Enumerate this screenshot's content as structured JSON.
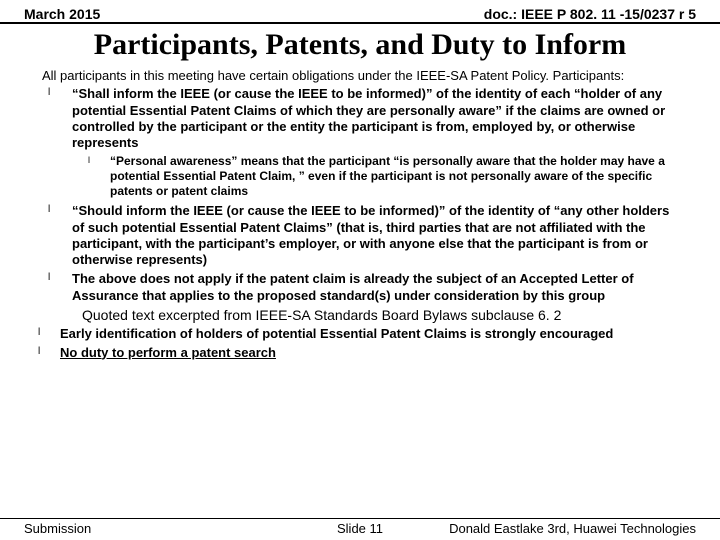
{
  "header": {
    "left": "March 2015",
    "right": "doc.: IEEE P 802. 11 -15/0237 r 5"
  },
  "title": "Participants, Patents, and Duty to Inform",
  "intro": "All participants in this meeting have certain obligations under the IEEE-SA Patent Policy.  Participants:",
  "bullets": {
    "b1": "“Shall inform the IEEE (or cause the IEEE to be informed)” of the identity of each “holder of any potential Essential Patent Claims of which they are personally aware” if the claims are owned or controlled by the participant or the entity the participant is from, employed by, or otherwise represents",
    "b1a": "“Personal awareness” means that the participant “is personally aware that the holder may have a potential Essential Patent Claim, ” even if the participant is not personally aware of the specific patents or patent claims",
    "b2": "“Should inform the IEEE (or cause the IEEE to be informed)” of the identity of “any other holders of such potential Essential Patent Claims” (that is, third parties that are not affiliated with the participant, with the participant’s employer, or with anyone else that the participant is from or otherwise represents)",
    "b3": "The above does not apply if the patent claim is already the subject of an Accepted Letter of Assurance that applies to the proposed standard(s) under consideration by this group",
    "quote": "Quoted text excerpted from IEEE-SA Standards Board Bylaws subclause 6. 2",
    "b4": "Early identification of holders of potential Essential Patent Claims is strongly encouraged",
    "b5": "No duty to perform a patent search"
  },
  "footer": {
    "left": "Submission",
    "center": "Slide 11",
    "right": "Donald Eastlake 3rd, Huawei Technologies"
  },
  "glyph": "l"
}
